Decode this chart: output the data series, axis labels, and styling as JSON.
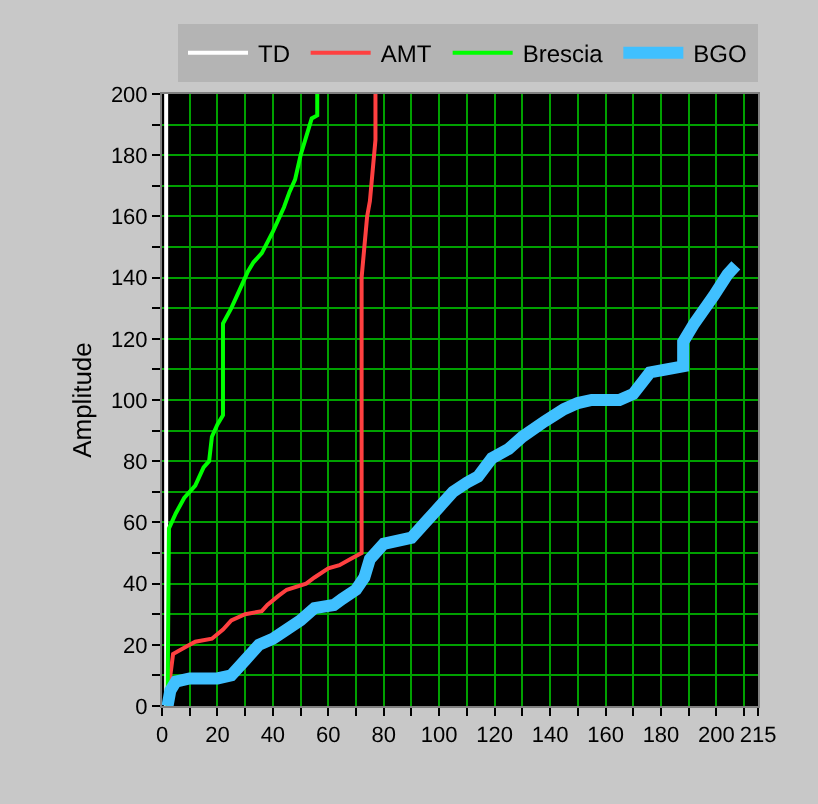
{
  "chart_data": {
    "type": "line",
    "ylabel": "Amplitude",
    "xlim": [
      0,
      215
    ],
    "xticks": [
      0,
      {
        "value": 10,
        "label": null
      },
      20,
      {
        "value": 30,
        "label": null
      },
      40,
      {
        "value": 50,
        "label": null
      },
      60,
      {
        "value": 70,
        "label": null
      },
      80,
      {
        "value": 90,
        "label": null
      },
      100,
      {
        "value": 110,
        "label": null
      },
      120,
      {
        "value": 130,
        "label": null
      },
      140,
      {
        "value": 150,
        "label": null
      },
      160,
      {
        "value": 170,
        "label": null
      },
      180,
      {
        "value": 190,
        "label": null
      },
      200,
      {
        "value": 210,
        "label": null
      },
      215
    ],
    "ylim": [
      0,
      200
    ],
    "yticks": [
      0,
      {
        "value": 10,
        "label": null
      },
      20,
      {
        "value": 30,
        "label": null
      },
      40,
      {
        "value": 50,
        "label": null
      },
      60,
      {
        "value": 70,
        "label": null
      },
      80,
      {
        "value": 90,
        "label": null
      },
      100,
      {
        "value": 110,
        "label": null
      },
      120,
      {
        "value": 130,
        "label": null
      },
      140,
      {
        "value": 150,
        "label": null
      },
      160,
      {
        "value": 170,
        "label": null
      },
      180,
      {
        "value": 190,
        "label": null
      },
      200
    ],
    "grid": true,
    "legend": "top",
    "marker": "none",
    "line_style": "solid",
    "series": [
      {
        "name": "TD",
        "color": "#ffffff",
        "x": [
          1.5,
          1.5,
          1.5,
          1.5,
          1.5
        ],
        "values": [
          0,
          50,
          100,
          150,
          200
        ]
      },
      {
        "name": "AMT",
        "color": "#ff4040",
        "x": [
          3,
          3,
          4,
          8,
          12,
          18,
          22,
          25,
          30,
          36,
          38,
          42,
          45,
          52,
          55,
          60,
          64,
          68,
          72,
          72,
          73,
          74,
          75,
          76,
          77,
          77
        ],
        "values": [
          0,
          10,
          17,
          19,
          21,
          22,
          25,
          28,
          30,
          31,
          33,
          36,
          38,
          40,
          42,
          45,
          46,
          48,
          50,
          140,
          150,
          160,
          165,
          175,
          185,
          200
        ]
      },
      {
        "name": "Brescia",
        "color": "#00ff00",
        "x": [
          2,
          2.5,
          5,
          8,
          12,
          15,
          17,
          18,
          20,
          22,
          22,
          25,
          28,
          31,
          33,
          36,
          40,
          44,
          46,
          48,
          50,
          52,
          54,
          56,
          56
        ],
        "values": [
          0,
          58,
          63,
          68,
          72,
          78,
          80,
          88,
          92,
          95,
          125,
          130,
          136,
          142,
          145,
          148,
          155,
          163,
          168,
          172,
          180,
          186,
          192,
          193,
          200
        ]
      },
      {
        "name": "BGO",
        "color": "#40c0ff",
        "x": [
          2,
          3,
          5,
          10,
          20,
          25,
          30,
          35,
          40,
          45,
          50,
          55,
          62,
          65,
          70,
          73,
          75,
          80,
          90,
          95,
          100,
          105,
          110,
          114,
          119,
          125,
          130,
          138,
          145,
          150,
          155,
          165,
          170,
          176,
          182,
          188,
          188,
          192,
          199,
          204,
          207
        ],
        "values": [
          0,
          5,
          8,
          9,
          9,
          10,
          15,
          20,
          22,
          25,
          28,
          32,
          33,
          35,
          38,
          42,
          48,
          53,
          55,
          60,
          65,
          70,
          73,
          75,
          81,
          84,
          88,
          93,
          97,
          99,
          100,
          100,
          102,
          109,
          110,
          111,
          119,
          125,
          134,
          141,
          144
        ]
      }
    ]
  }
}
